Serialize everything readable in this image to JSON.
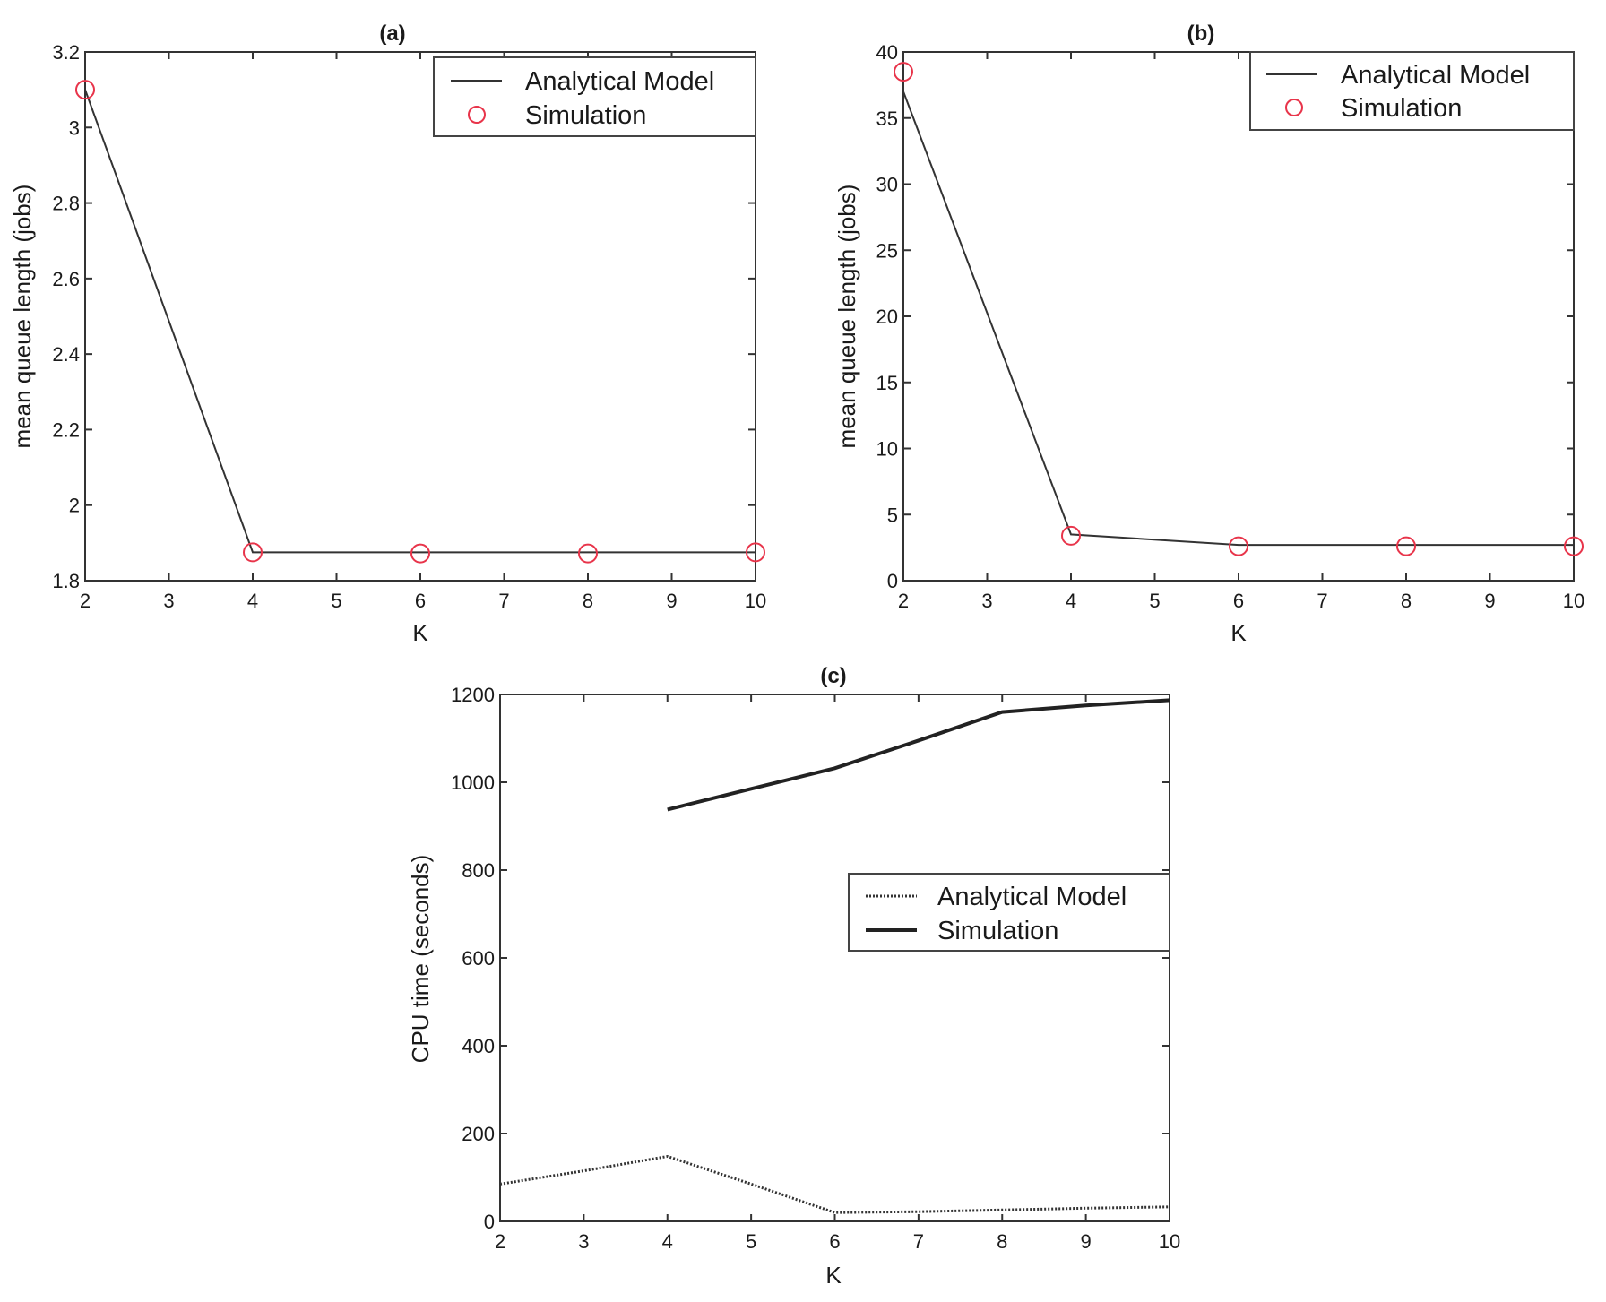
{
  "chart_data": [
    {
      "type": "line",
      "title": "(a)",
      "xlabel": "K",
      "ylabel": "mean queue length (jobs)",
      "xlim": [
        2,
        10
      ],
      "ylim": [
        1.8,
        3.2
      ],
      "xticks": [
        "2",
        "3",
        "4",
        "5",
        "6",
        "7",
        "8",
        "9",
        "10"
      ],
      "yticks": [
        "1.8",
        "2",
        "2.2",
        "2.4",
        "2.6",
        "2.8",
        "3",
        "3.2"
      ],
      "grid": false,
      "legend_position": "upper right",
      "x": [
        2,
        4,
        6,
        8,
        10
      ],
      "series": [
        {
          "name": "Analytical Model",
          "style": "solid line",
          "color": "#333333",
          "values": [
            3.1,
            1.875,
            1.875,
            1.875,
            1.875
          ]
        },
        {
          "name": "Simulation",
          "style": "circle markers",
          "color": "#e8344a",
          "values": [
            3.1,
            1.875,
            1.872,
            1.872,
            1.875
          ]
        }
      ]
    },
    {
      "type": "line",
      "title": "(b)",
      "xlabel": "K",
      "ylabel": "mean queue length (jobs)",
      "xlim": [
        2,
        10
      ],
      "ylim": [
        0,
        40
      ],
      "xticks": [
        "2",
        "3",
        "4",
        "5",
        "6",
        "7",
        "8",
        "9",
        "10"
      ],
      "yticks": [
        "0",
        "5",
        "10",
        "15",
        "20",
        "25",
        "30",
        "35",
        "40"
      ],
      "grid": false,
      "legend_position": "upper right",
      "x": [
        2,
        4,
        6,
        8,
        10
      ],
      "series": [
        {
          "name": "Analytical Model",
          "style": "solid line",
          "color": "#333333",
          "values": [
            37.0,
            3.5,
            2.7,
            2.7,
            2.7
          ]
        },
        {
          "name": "Simulation",
          "style": "circle markers",
          "color": "#e8344a",
          "values": [
            38.5,
            3.4,
            2.6,
            2.6,
            2.6
          ]
        }
      ]
    },
    {
      "type": "line",
      "title": "(c)",
      "xlabel": "K",
      "ylabel": "CPU time (seconds)",
      "xlim": [
        2,
        10
      ],
      "ylim": [
        0,
        1200
      ],
      "xticks": [
        "2",
        "3",
        "4",
        "5",
        "6",
        "7",
        "8",
        "9",
        "10"
      ],
      "yticks": [
        "0",
        "200",
        "400",
        "600",
        "800",
        "1000",
        "1200"
      ],
      "grid": false,
      "legend_position": "center right",
      "series": [
        {
          "name": "Analytical Model",
          "style": "dotted line",
          "color": "#333333",
          "x": [
            2,
            3,
            4,
            5,
            6,
            7,
            8,
            9,
            10
          ],
          "values": [
            85,
            115,
            148,
            85,
            20,
            22,
            26,
            30,
            33
          ]
        },
        {
          "name": "Simulation",
          "style": "thick solid line",
          "color": "#222222",
          "x": [
            4,
            5,
            6,
            7,
            8,
            9,
            10
          ],
          "values": [
            938,
            985,
            1032,
            1095,
            1160,
            1175,
            1187
          ]
        }
      ]
    }
  ],
  "panels": {
    "a": {
      "title": "(a)",
      "xlabel": "K",
      "ylabel": "mean queue length (jobs)",
      "legend": [
        "Analytical Model",
        "Simulation"
      ]
    },
    "b": {
      "title": "(b)",
      "xlabel": "K",
      "ylabel": "mean queue length (jobs)",
      "legend": [
        "Analytical Model",
        "Simulation"
      ]
    },
    "c": {
      "title": "(c)",
      "xlabel": "K",
      "ylabel": "CPU time (seconds)",
      "legend": [
        "Analytical Model",
        "Simulation"
      ]
    }
  }
}
